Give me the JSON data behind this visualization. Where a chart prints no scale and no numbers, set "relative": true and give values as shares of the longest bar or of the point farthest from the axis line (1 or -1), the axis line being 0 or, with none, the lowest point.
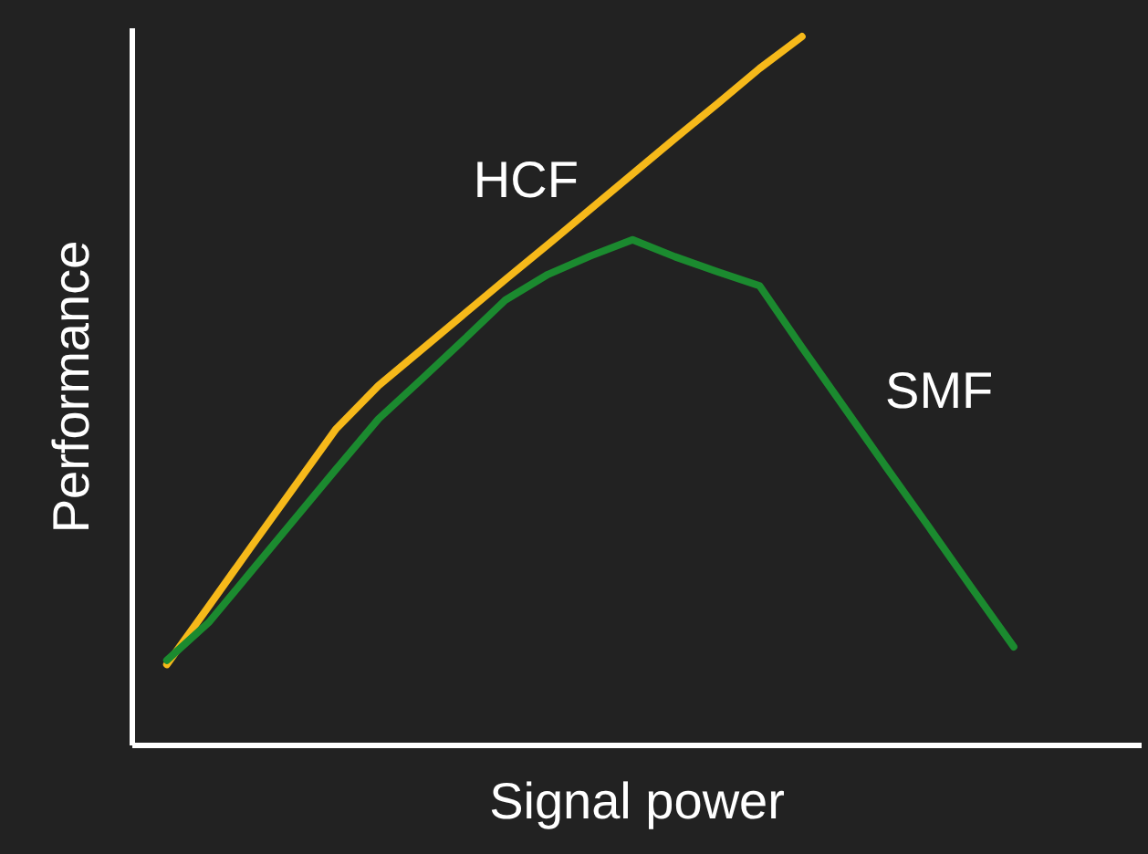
{
  "chart_data": {
    "type": "line",
    "xlabel": "Signal power",
    "ylabel": "Performance",
    "relative": true,
    "grid": false,
    "categories": [
      null,
      null,
      null,
      null,
      null,
      null,
      null,
      null,
      null,
      null,
      null,
      null,
      null,
      null,
      null,
      null,
      null,
      null,
      null,
      null,
      null
    ],
    "series": [
      {
        "name": "HCF",
        "color": "#f6b91a",
        "values": [
          0.113,
          0.196,
          0.28,
          0.363,
          0.446,
          0.507,
          0.557,
          0.607,
          0.657,
          0.706,
          0.756,
          0.806,
          0.856,
          0.905,
          0.955,
          1.0,
          null,
          null,
          null,
          null,
          null
        ]
      },
      {
        "name": "SMF",
        "color": "#1b8a2f",
        "values": [
          0.119,
          0.173,
          0.245,
          0.317,
          0.389,
          0.46,
          0.515,
          0.571,
          0.628,
          0.664,
          0.69,
          0.713,
          0.689,
          0.668,
          0.648,
          0.561,
          0.476,
          0.391,
          0.307,
          0.222,
          0.138
        ]
      }
    ]
  }
}
